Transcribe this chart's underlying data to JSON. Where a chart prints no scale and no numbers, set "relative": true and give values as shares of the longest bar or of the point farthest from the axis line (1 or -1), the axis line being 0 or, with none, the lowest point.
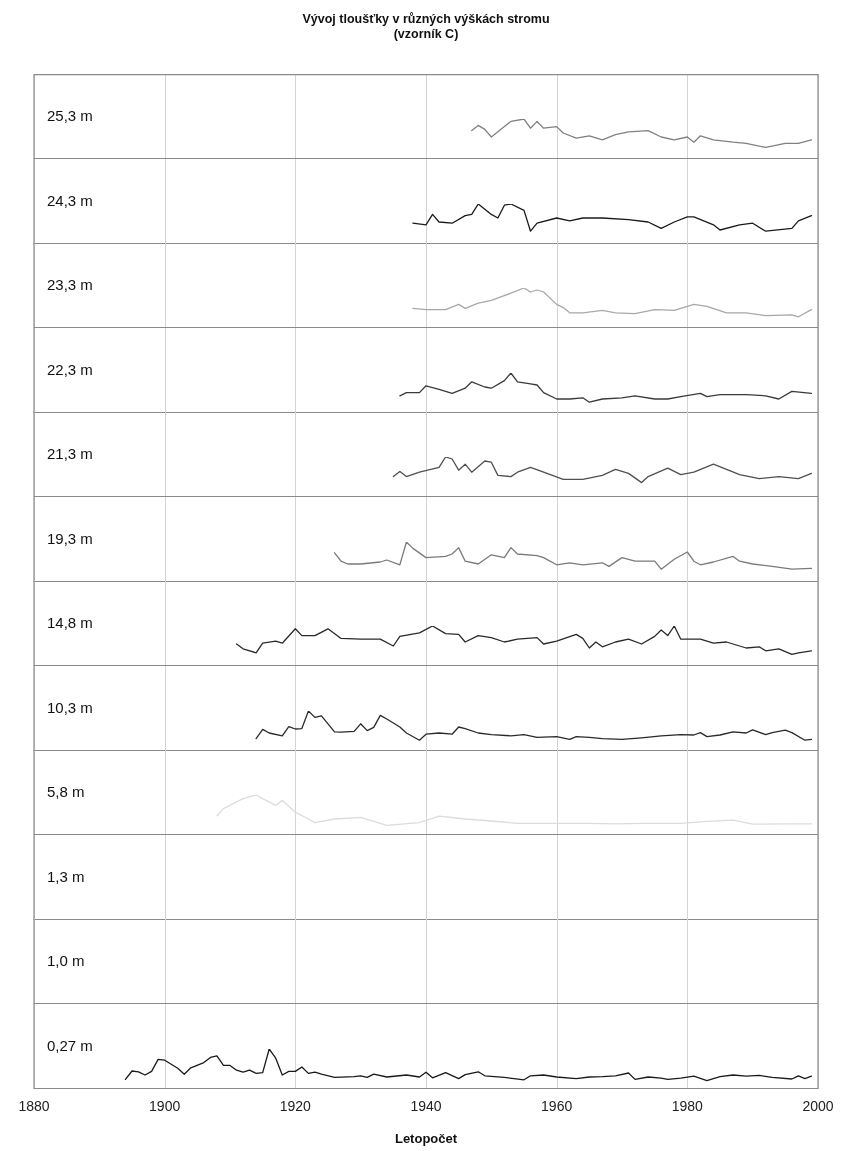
{
  "chart_data": [
    {
      "type": "line",
      "title": "Vývoj tloušťky v různých výškách stromu",
      "subtitle": "(vzorník C)",
      "annotations": [
        "25,3 m"
      ],
      "relative": true,
      "color": "#808080",
      "xlim": [
        1880,
        2000
      ],
      "xticks": [
        1880,
        1900,
        1920,
        1940,
        1960,
        1980,
        2000
      ],
      "grid": "x",
      "tick_labels": false,
      "x": [
        1947,
        1948,
        1949,
        1950,
        1952,
        1953,
        1955,
        1956,
        1957,
        1958,
        1960,
        1961,
        1963,
        1965,
        1967,
        1969,
        1971,
        1974,
        1976,
        1978,
        1980,
        1981,
        1982,
        1984,
        1987,
        1989,
        1992,
        1995,
        1997,
        1999
      ],
      "values": [
        0.71,
        0.84,
        0.74,
        0.55,
        0.81,
        0.94,
        1,
        0.77,
        0.94,
        0.77,
        0.81,
        0.65,
        0.52,
        0.58,
        0.48,
        0.61,
        0.68,
        0.71,
        0.55,
        0.48,
        0.55,
        0.42,
        0.58,
        0.48,
        0.42,
        0.39,
        0.29,
        0.39,
        0.39,
        0.48
      ]
    },
    {
      "type": "line",
      "annotations": [
        "24,3 m"
      ],
      "relative": true,
      "color": "#1a1a1a",
      "xlim": [
        1880,
        2000
      ],
      "xticks": [
        1880,
        1900,
        1920,
        1940,
        1960,
        1980,
        2000
      ],
      "grid": "x",
      "tick_labels": false,
      "x": [
        1938,
        1940,
        1941,
        1942,
        1944,
        1946,
        1947,
        1948,
        1950,
        1951,
        1952,
        1953,
        1955,
        1956,
        1957,
        1960,
        1962,
        1964,
        1967,
        1971,
        1974,
        1976,
        1978,
        1980,
        1981,
        1984,
        1985,
        1988,
        1990,
        1992,
        1996,
        1997,
        1999
      ],
      "values": [
        0.52,
        0.48,
        0.74,
        0.55,
        0.52,
        0.71,
        0.74,
        1,
        0.74,
        0.65,
        0.97,
        1,
        0.84,
        0.32,
        0.52,
        0.65,
        0.58,
        0.65,
        0.65,
        0.61,
        0.55,
        0.39,
        0.55,
        0.68,
        0.68,
        0.48,
        0.35,
        0.48,
        0.52,
        0.32,
        0.39,
        0.58,
        0.71
      ]
    },
    {
      "type": "line",
      "annotations": [
        "23,3 m"
      ],
      "relative": true,
      "color": "#a8a8a8",
      "xlim": [
        1880,
        2000
      ],
      "xticks": [
        1880,
        1900,
        1920,
        1940,
        1960,
        1980,
        2000
      ],
      "grid": "x",
      "tick_labels": false,
      "x": [
        1938,
        1940,
        1943,
        1945,
        1946,
        1948,
        1950,
        1953,
        1955,
        1956,
        1957,
        1958,
        1960,
        1961,
        1962,
        1964,
        1967,
        1969,
        1972,
        1975,
        1978,
        1981,
        1983,
        1986,
        1989,
        1992,
        1996,
        1997,
        1999
      ],
      "values": [
        0.49,
        0.46,
        0.46,
        0.59,
        0.49,
        0.62,
        0.69,
        0.87,
        1,
        0.9,
        0.95,
        0.9,
        0.59,
        0.51,
        0.38,
        0.38,
        0.44,
        0.38,
        0.36,
        0.46,
        0.44,
        0.59,
        0.54,
        0.38,
        0.38,
        0.31,
        0.33,
        0.28,
        0.46
      ]
    },
    {
      "type": "line",
      "annotations": [
        "22,3 m"
      ],
      "relative": true,
      "color": "#3a3a3a",
      "xlim": [
        1880,
        2000
      ],
      "xticks": [
        1880,
        1900,
        1920,
        1940,
        1960,
        1980,
        2000
      ],
      "grid": "x",
      "tick_labels": false,
      "x": [
        1936,
        1937,
        1939,
        1940,
        1942,
        1944,
        1946,
        1947,
        1949,
        1950,
        1952,
        1953,
        1954,
        1956,
        1957,
        1958,
        1960,
        1962,
        1964,
        1965,
        1967,
        1970,
        1972,
        1975,
        1977,
        1979,
        1982,
        1983,
        1985,
        1989,
        1992,
        1994,
        1996,
        1999
      ],
      "values": [
        0.43,
        0.51,
        0.51,
        0.68,
        0.59,
        0.49,
        0.62,
        0.78,
        0.65,
        0.62,
        0.81,
        1,
        0.78,
        0.73,
        0.7,
        0.51,
        0.35,
        0.35,
        0.38,
        0.27,
        0.35,
        0.38,
        0.43,
        0.35,
        0.35,
        0.41,
        0.49,
        0.41,
        0.46,
        0.46,
        0.43,
        0.35,
        0.54,
        0.49
      ]
    },
    {
      "type": "line",
      "annotations": [
        "21,3 m"
      ],
      "relative": true,
      "color": "#505050",
      "xlim": [
        1880,
        2000
      ],
      "xticks": [
        1880,
        1900,
        1920,
        1940,
        1960,
        1980,
        2000
      ],
      "grid": "x",
      "tick_labels": false,
      "x": [
        1935,
        1936,
        1937,
        1939,
        1942,
        1943,
        1944,
        1945,
        1946,
        1947,
        1949,
        1950,
        1951,
        1953,
        1954,
        1956,
        1958,
        1961,
        1964,
        1967,
        1969,
        1971,
        1973,
        1974,
        1977,
        1979,
        1981,
        1984,
        1986,
        1988,
        1991,
        1994,
        1997,
        1999
      ],
      "values": [
        0.51,
        0.64,
        0.51,
        0.62,
        0.74,
        1,
        0.95,
        0.67,
        0.82,
        0.62,
        0.9,
        0.87,
        0.54,
        0.51,
        0.62,
        0.74,
        0.62,
        0.44,
        0.44,
        0.54,
        0.69,
        0.59,
        0.36,
        0.51,
        0.72,
        0.56,
        0.62,
        0.82,
        0.69,
        0.56,
        0.46,
        0.51,
        0.46,
        0.59
      ]
    },
    {
      "type": "line",
      "annotations": [
        "19,3 m"
      ],
      "relative": true,
      "color": "#7a7a7a",
      "xlim": [
        1880,
        2000
      ],
      "xticks": [
        1880,
        1900,
        1920,
        1940,
        1960,
        1980,
        2000
      ],
      "grid": "x",
      "tick_labels": false,
      "x": [
        1926,
        1927,
        1928,
        1930,
        1933,
        1934,
        1936,
        1937,
        1938,
        1940,
        1943,
        1944,
        1945,
        1946,
        1948,
        1950,
        1952,
        1953,
        1954,
        1957,
        1958,
        1960,
        1962,
        1964,
        1967,
        1968,
        1970,
        1972,
        1975,
        1976,
        1978,
        1980,
        1981,
        1982,
        1984,
        1987,
        1988,
        1990,
        1993,
        1996,
        1999
      ],
      "values": [
        0.73,
        0.52,
        0.45,
        0.45,
        0.5,
        0.55,
        0.43,
        1,
        0.84,
        0.61,
        0.64,
        0.7,
        0.86,
        0.52,
        0.45,
        0.68,
        0.61,
        0.86,
        0.7,
        0.66,
        0.61,
        0.43,
        0.48,
        0.43,
        0.48,
        0.39,
        0.61,
        0.52,
        0.52,
        0.32,
        0.57,
        0.75,
        0.52,
        0.43,
        0.5,
        0.64,
        0.52,
        0.45,
        0.39,
        0.32,
        0.34
      ]
    },
    {
      "type": "line",
      "annotations": [
        "14,8 m"
      ],
      "relative": true,
      "color": "#2a2a2a",
      "xlim": [
        1880,
        2000
      ],
      "xticks": [
        1880,
        1900,
        1920,
        1940,
        1960,
        1980,
        2000
      ],
      "grid": "x",
      "tick_labels": false,
      "x": [
        1911,
        1912,
        1914,
        1915,
        1917,
        1918,
        1920,
        1921,
        1923,
        1925,
        1927,
        1930,
        1933,
        1935,
        1936,
        1939,
        1941,
        1943,
        1945,
        1946,
        1948,
        1950,
        1952,
        1954,
        1957,
        1958,
        1960,
        1963,
        1964,
        1965,
        1966,
        1967,
        1969,
        1971,
        1973,
        1975,
        1976,
        1977,
        1978,
        1979,
        1982,
        1984,
        1986,
        1989,
        1991,
        1992,
        1994,
        1996,
        1997,
        1999
      ],
      "values": [
        0.55,
        0.43,
        0.33,
        0.57,
        0.62,
        0.57,
        0.93,
        0.76,
        0.76,
        0.93,
        0.69,
        0.67,
        0.67,
        0.5,
        0.74,
        0.83,
        1,
        0.81,
        0.79,
        0.6,
        0.76,
        0.71,
        0.6,
        0.67,
        0.71,
        0.55,
        0.62,
        0.79,
        0.69,
        0.45,
        0.6,
        0.48,
        0.6,
        0.67,
        0.55,
        0.74,
        0.9,
        0.76,
        1,
        0.67,
        0.67,
        0.57,
        0.6,
        0.45,
        0.48,
        0.38,
        0.43,
        0.29,
        0.33,
        0.38
      ]
    },
    {
      "type": "line",
      "annotations": [
        "10,3 m"
      ],
      "relative": true,
      "color": "#2a2a2a",
      "xlim": [
        1880,
        2000
      ],
      "xticks": [
        1880,
        1900,
        1920,
        1940,
        1960,
        1980,
        2000
      ],
      "grid": "x",
      "tick_labels": false,
      "x": [
        1914,
        1915,
        1916,
        1918,
        1919,
        1920,
        1921,
        1922,
        1923,
        1924,
        1926,
        1927,
        1929,
        1930,
        1931,
        1932,
        1933,
        1934,
        1936,
        1937,
        1939,
        1940,
        1942,
        1944,
        1945,
        1946,
        1948,
        1950,
        1953,
        1955,
        1957,
        1960,
        1962,
        1963,
        1965,
        1967,
        1970,
        1973,
        1976,
        1979,
        1981,
        1982,
        1983,
        1985,
        1987,
        1989,
        1990,
        1992,
        1993,
        1995,
        1996,
        1998,
        1999
      ],
      "values": [
        0.31,
        0.54,
        0.45,
        0.38,
        0.61,
        0.55,
        0.56,
        1,
        0.84,
        0.88,
        0.48,
        0.47,
        0.49,
        0.68,
        0.51,
        0.59,
        0.89,
        0.8,
        0.6,
        0.45,
        0.27,
        0.42,
        0.45,
        0.42,
        0.6,
        0.56,
        0.45,
        0.41,
        0.38,
        0.41,
        0.34,
        0.36,
        0.29,
        0.36,
        0.34,
        0.31,
        0.29,
        0.33,
        0.38,
        0.41,
        0.4,
        0.46,
        0.36,
        0.4,
        0.48,
        0.45,
        0.53,
        0.41,
        0.46,
        0.52,
        0.46,
        0.27,
        0.29
      ]
    },
    {
      "type": "line",
      "annotations": [
        "5,8 m"
      ],
      "relative": true,
      "color": "#dcdcdc",
      "xlim": [
        1880,
        2000
      ],
      "xticks": [
        1880,
        1900,
        1920,
        1940,
        1960,
        1980,
        2000
      ],
      "grid": "x",
      "tick_labels": false,
      "x": [
        1908,
        1909,
        1911,
        1912,
        1914,
        1915,
        1917,
        1918,
        1920,
        1922,
        1923,
        1926,
        1930,
        1934,
        1939,
        1942,
        1946,
        1950,
        1954,
        1960,
        1965,
        1969,
        1973,
        1979,
        1983,
        1987,
        1990,
        1995,
        1999
      ],
      "values": [
        0.48,
        0.66,
        0.83,
        0.91,
        1,
        0.91,
        0.74,
        0.87,
        0.57,
        0.4,
        0.31,
        0.4,
        0.44,
        0.24,
        0.31,
        0.47,
        0.4,
        0.35,
        0.29,
        0.29,
        0.29,
        0.28,
        0.29,
        0.29,
        0.34,
        0.37,
        0.27,
        0.28,
        0.28
      ]
    },
    {
      "type": "other",
      "annotations": [
        "1,3 m"
      ]
    },
    {
      "type": "other",
      "annotations": [
        "1,0 m"
      ]
    },
    {
      "type": "line",
      "annotations": [
        "0,27 m"
      ],
      "xlabel": "Letopočet",
      "relative": true,
      "color": "#1a1a1a",
      "xlim": [
        1880,
        2000
      ],
      "xticks": [
        1880,
        1900,
        1920,
        1940,
        1960,
        1980,
        2000
      ],
      "grid": "x",
      "tick_labels": "x",
      "x": [
        1894,
        1895,
        1896,
        1897,
        1898,
        1899,
        1900,
        1901,
        1902,
        1903,
        1904,
        1906,
        1907,
        1908,
        1909,
        1910,
        1911,
        1912,
        1913,
        1914,
        1915,
        1916,
        1917,
        1918,
        1919,
        1920,
        1921,
        1922,
        1923,
        1924,
        1926,
        1929,
        1930,
        1931,
        1932,
        1934,
        1937,
        1939,
        1940,
        1941,
        1943,
        1945,
        1946,
        1948,
        1949,
        1952,
        1955,
        1956,
        1958,
        1960,
        1963,
        1965,
        1967,
        1969,
        1971,
        1972,
        1974,
        1976,
        1977,
        1979,
        1981,
        1983,
        1985,
        1987,
        1989,
        1991,
        1993,
        1996,
        1997,
        1998,
        1999
      ],
      "values": [
        0.24,
        0.45,
        0.43,
        0.35,
        0.44,
        0.74,
        0.72,
        0.62,
        0.52,
        0.37,
        0.53,
        0.66,
        0.79,
        0.83,
        0.59,
        0.59,
        0.47,
        0.42,
        0.47,
        0.39,
        0.41,
        1,
        0.77,
        0.35,
        0.44,
        0.44,
        0.55,
        0.39,
        0.42,
        0.37,
        0.29,
        0.31,
        0.33,
        0.29,
        0.37,
        0.3,
        0.35,
        0.3,
        0.42,
        0.28,
        0.41,
        0.26,
        0.36,
        0.43,
        0.33,
        0.29,
        0.23,
        0.33,
        0.35,
        0.3,
        0.26,
        0.3,
        0.31,
        0.33,
        0.4,
        0.24,
        0.3,
        0.27,
        0.24,
        0.27,
        0.32,
        0.21,
        0.31,
        0.35,
        0.32,
        0.34,
        0.29,
        0.25,
        0.33,
        0.26,
        0.32
      ]
    }
  ]
}
